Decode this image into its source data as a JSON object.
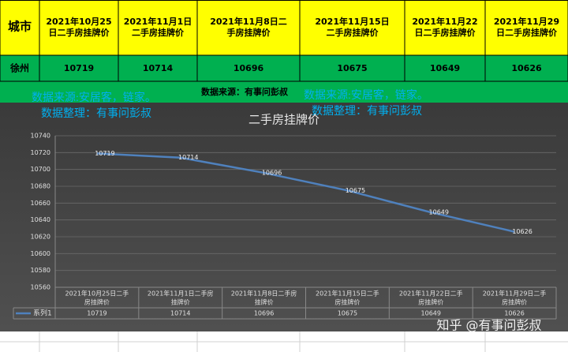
{
  "table": {
    "header": [
      "城市",
      "2021年10月25日二手房挂牌价",
      "2021年11月1日二手房挂牌价",
      "2021年11月8日二手房挂牌价",
      "2021年11月15日二手房挂牌价",
      "2021年11月22日二手房挂牌价",
      "2021年11月29日二手房挂牌价"
    ],
    "rows": [
      [
        "徐州",
        10719,
        10714,
        10696,
        10675,
        10649,
        10626
      ]
    ]
  },
  "source_note": "数据来源：有事问彭叔",
  "watermarks": [
    "数据来源:安居客，链家。",
    "数据整理：有事问彭叔",
    "数据来源:安居客，链家。",
    "数据整理：有事问彭叔"
  ],
  "site_watermark": "知乎 @有事问彭叔",
  "chart_data": {
    "type": "line",
    "title": "二手房挂牌价",
    "categories": [
      "2021年10月25日二手房挂牌价",
      "2021年11月1日二手房挂牌价",
      "2021年11月8日二手房挂牌价",
      "2021年11月15日二手房挂牌价",
      "2021年11月22日二手房挂牌价",
      "2021年11月29日二手房挂牌价"
    ],
    "series": [
      {
        "name": "系列1",
        "color": "#4f81bd",
        "values": [
          10719,
          10714,
          10696,
          10675,
          10649,
          10626
        ]
      }
    ],
    "ylim": [
      10560,
      10740
    ],
    "yticks": [
      10560,
      10580,
      10600,
      10620,
      10640,
      10660,
      10680,
      10700,
      10720,
      10740
    ],
    "grid": true
  }
}
